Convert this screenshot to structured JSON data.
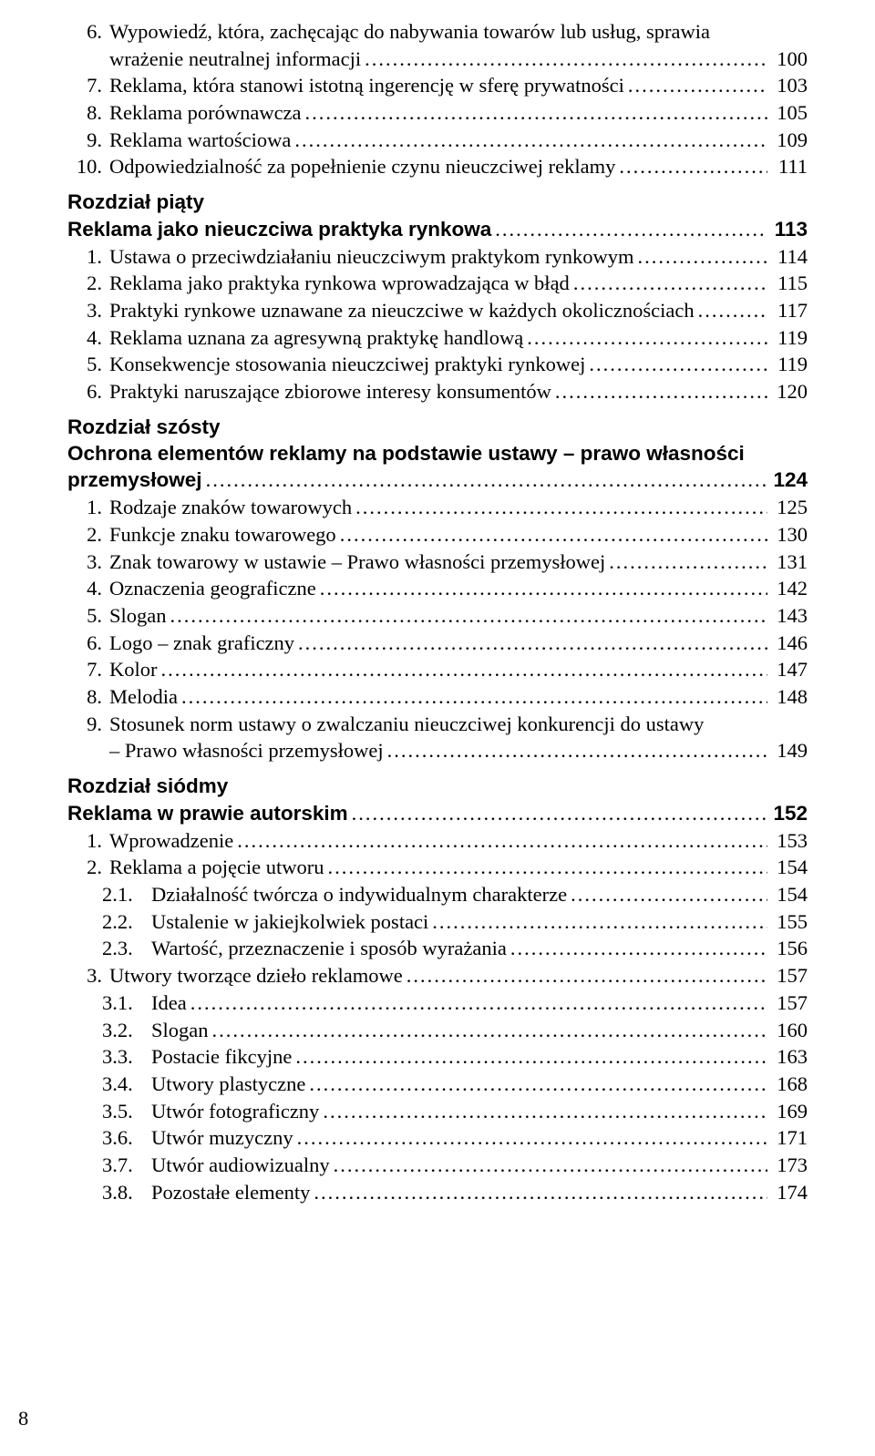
{
  "colors": {
    "text": "#000000",
    "background": "#ffffff"
  },
  "typography": {
    "body_fontsize": 22.5,
    "line_height": 1.32,
    "bold_weight": 700,
    "serif_family": "Palatino Linotype",
    "sans_family": "Arial"
  },
  "footer_page_number": "8",
  "continuation": [
    {
      "num": "6.",
      "text_lines": [
        "Wypowiedź, która, zachęcając do nabywania towarów lub usług, sprawia",
        "wrażenie neutralnej informacji"
      ],
      "page": "100"
    },
    {
      "num": "7.",
      "text_lines": [
        "Reklama, która stanowi istotną ingerencję w sferę prywatności"
      ],
      "page": "103"
    },
    {
      "num": "8.",
      "text_lines": [
        "Reklama porównawcza"
      ],
      "page": "105"
    },
    {
      "num": "9.",
      "text_lines": [
        "Reklama wartościowa"
      ],
      "page": "109"
    },
    {
      "num": "10.",
      "text_lines": [
        "Odpowiedzialność za popełnienie czynu nieuczciwej reklamy"
      ],
      "page": "111"
    }
  ],
  "chapter5": {
    "heading": "Rozdział piąty",
    "title": "Reklama jako nieuczciwa praktyka rynkowa",
    "title_page": "113",
    "items": [
      {
        "num": "1.",
        "text_lines": [
          "Ustawa o przeciwdziałaniu nieuczciwym praktykom rynkowym"
        ],
        "page": "114"
      },
      {
        "num": "2.",
        "text_lines": [
          "Reklama jako praktyka rynkowa wprowadzająca w błąd"
        ],
        "page": "115"
      },
      {
        "num": "3.",
        "text_lines": [
          "Praktyki rynkowe uznawane za nieuczciwe w każdych okolicznościach"
        ],
        "page": "117"
      },
      {
        "num": "4.",
        "text_lines": [
          "Reklama uznana za agresywną praktykę handlową"
        ],
        "page": "119"
      },
      {
        "num": "5.",
        "text_lines": [
          "Konsekwencje stosowania nieuczciwej praktyki rynkowej"
        ],
        "page": "119"
      },
      {
        "num": "6.",
        "text_lines": [
          "Praktyki naruszające zbiorowe interesy konsumentów"
        ],
        "page": "120"
      }
    ]
  },
  "chapter6": {
    "heading": "Rozdział szósty",
    "title_lines": [
      "Ochrona elementów reklamy na podstawie ustawy – prawo własności",
      "przemysłowej"
    ],
    "title_page": "124",
    "items": [
      {
        "num": "1.",
        "text_lines": [
          "Rodzaje znaków towarowych"
        ],
        "page": "125"
      },
      {
        "num": "2.",
        "text_lines": [
          "Funkcje znaku towarowego"
        ],
        "page": "130"
      },
      {
        "num": "3.",
        "text_lines": [
          "Znak towarowy w ustawie – Prawo własności przemysłowej"
        ],
        "page": "131"
      },
      {
        "num": "4.",
        "text_lines": [
          "Oznaczenia geograficzne"
        ],
        "page": "142"
      },
      {
        "num": "5.",
        "text_lines": [
          "Slogan"
        ],
        "page": "143"
      },
      {
        "num": "6.",
        "text_lines": [
          "Logo – znak graficzny"
        ],
        "page": "146"
      },
      {
        "num": "7.",
        "text_lines": [
          "Kolor"
        ],
        "page": "147"
      },
      {
        "num": "8.",
        "text_lines": [
          "Melodia"
        ],
        "page": "148"
      },
      {
        "num": "9.",
        "text_lines": [
          "Stosunek norm ustawy o zwalczaniu nieuczciwej konkurencji do ustawy",
          "– Prawo własności przemysłowej"
        ],
        "page": "149"
      }
    ]
  },
  "chapter7": {
    "heading": "Rozdział siódmy",
    "title": "Reklama w prawie autorskim",
    "title_page": "152",
    "items": [
      {
        "num": "1.",
        "text_lines": [
          "Wprowadzenie"
        ],
        "page": "153"
      },
      {
        "num": "2.",
        "text_lines": [
          "Reklama a pojęcie utworu"
        ],
        "page": "154",
        "sub": [
          {
            "num": "2.1.",
            "text": "Działalność twórcza o indywidualnym charakterze",
            "page": "154"
          },
          {
            "num": "2.2.",
            "text": "Ustalenie w jakiejkolwiek postaci",
            "page": "155"
          },
          {
            "num": "2.3.",
            "text": "Wartość, przeznaczenie i sposób wyrażania",
            "page": "156"
          }
        ]
      },
      {
        "num": "3.",
        "text_lines": [
          "Utwory tworzące dzieło reklamowe"
        ],
        "page": "157",
        "sub": [
          {
            "num": "3.1.",
            "text": "Idea",
            "page": "157"
          },
          {
            "num": "3.2.",
            "text": "Slogan",
            "page": "160"
          },
          {
            "num": "3.3.",
            "text": "Postacie fikcyjne",
            "page": "163"
          },
          {
            "num": "3.4.",
            "text": "Utwory plastyczne",
            "page": "168"
          },
          {
            "num": "3.5.",
            "text": "Utwór fotograficzny",
            "page": "169"
          },
          {
            "num": "3.6.",
            "text": "Utwór muzyczny",
            "page": "171"
          },
          {
            "num": "3.7.",
            "text": "Utwór audiowizualny",
            "page": "173"
          },
          {
            "num": "3.8.",
            "text": "Pozostałe elementy",
            "page": "174"
          }
        ]
      }
    ]
  }
}
